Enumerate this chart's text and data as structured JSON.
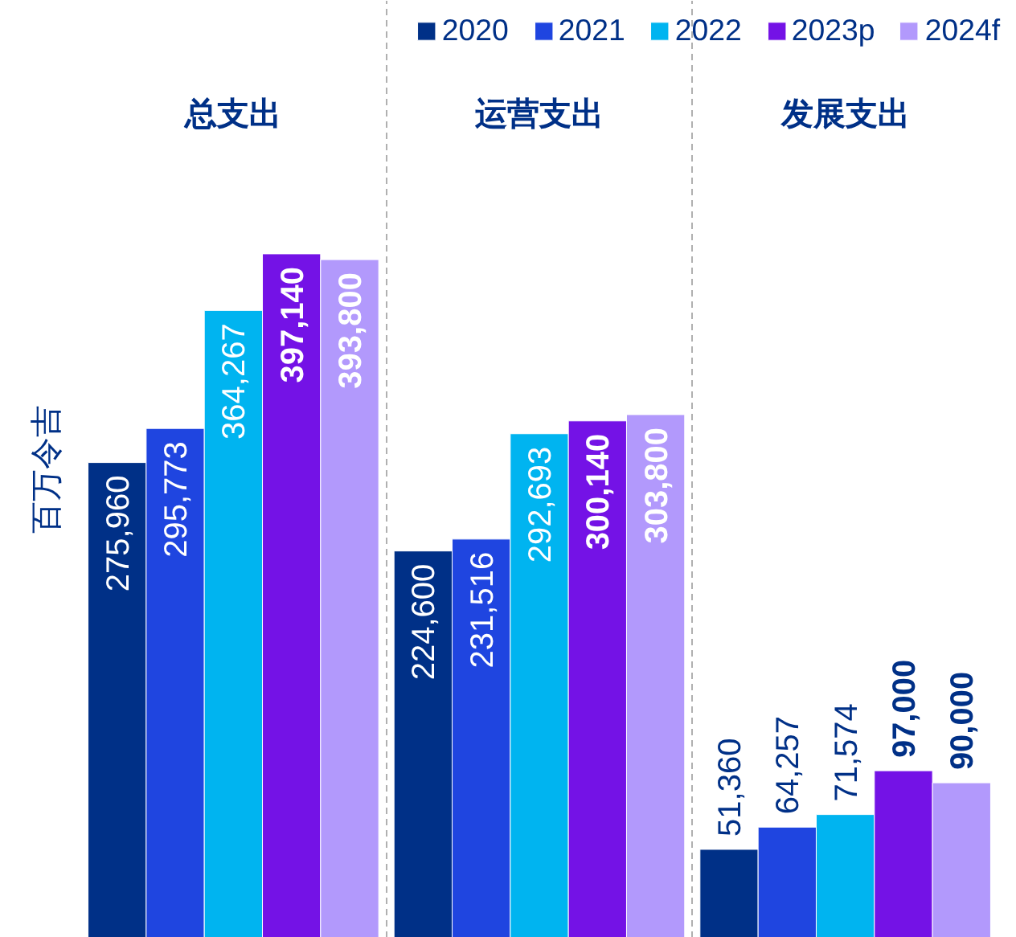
{
  "chart_data": {
    "type": "bar",
    "categories": [
      "总支出",
      "运营支出",
      "发展支出"
    ],
    "ylabel": "百万令吉",
    "series": [
      {
        "name": "2020",
        "color": "#003087",
        "values": [
          275960,
          224600,
          51360
        ],
        "value_labels": [
          "275,960",
          "224,600",
          "51,360"
        ]
      },
      {
        "name": "2021",
        "color": "#1f45e0",
        "values": [
          295773,
          231516,
          64257
        ],
        "value_labels": [
          "295,773",
          "231,516",
          "64,257"
        ]
      },
      {
        "name": "2022",
        "color": "#00b4f0",
        "values": [
          364267,
          292693,
          71574
        ],
        "value_labels": [
          "364,267",
          "292,693",
          "71,574"
        ]
      },
      {
        "name": "2023p",
        "color": "#7412e6",
        "values": [
          397140,
          300140,
          97000
        ],
        "value_labels": [
          "397,140",
          "300,140",
          "97,000"
        ]
      },
      {
        "name": "2024f",
        "color": "#b299fc",
        "values": [
          393800,
          303800,
          90000
        ],
        "value_labels": [
          "393,800",
          "303,800",
          "90,000"
        ]
      }
    ],
    "legend": "top",
    "grid": "x",
    "tick_labels": "x"
  }
}
